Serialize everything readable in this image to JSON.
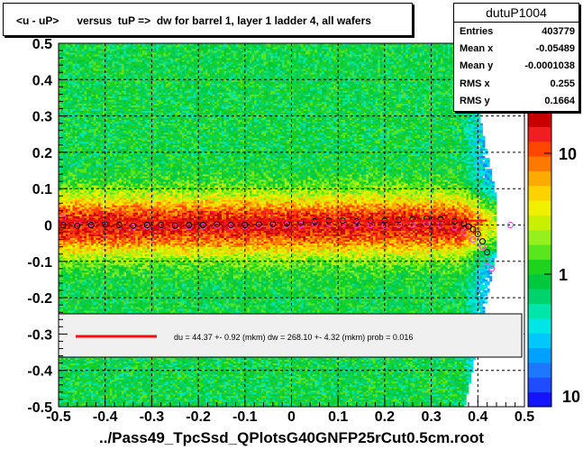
{
  "title": "<u - uP>      versus  tuP =>  dw for barrel 1, layer 1 ladder 4, all wafers",
  "x_axis_title": "../Pass49_TpcSsd_QPlotsG40GNFP25rCut0.5cm.root",
  "stats": {
    "name": "dutuP1004",
    "rows": [
      {
        "label": "Entries",
        "value": "403779"
      },
      {
        "label": "Mean x",
        "value": "-0.05489"
      },
      {
        "label": "Mean y",
        "value": "-0.0001038"
      },
      {
        "label": "RMS x",
        "value": "0.255"
      },
      {
        "label": "RMS y",
        "value": "0.1664"
      }
    ]
  },
  "fit_legend": "du =   44.37 +-  0.92 (mkm) dw =  268.10 +-  4.32 (mkm) prob = 0.016",
  "colors": {
    "fit_line": "#ee1111",
    "profile_black": "#000000",
    "profile_magenta": "#ff44cc",
    "legend_bg": "#f0f0f0"
  },
  "chart_data": {
    "type": "heatmap",
    "xlim": [
      -0.5,
      0.5
    ],
    "ylim": [
      -0.5,
      0.5
    ],
    "x_ticks": [
      "-0.5",
      "-0.4",
      "-0.3",
      "-0.2",
      "-0.1",
      "0",
      "0.1",
      "0.2",
      "0.3",
      "0.4",
      "0.5"
    ],
    "y_ticks": [
      "-0.5",
      "-0.4",
      "-0.3",
      "-0.2",
      "-0.1",
      "0",
      "0.1",
      "0.2",
      "0.3",
      "0.4",
      "0.5"
    ],
    "z_scale": "log",
    "z_ticks": [
      "1",
      "10"
    ],
    "profile_black": {
      "x": [
        -0.49,
        -0.46,
        -0.43,
        -0.4,
        -0.37,
        -0.34,
        -0.31,
        -0.28,
        -0.25,
        -0.22,
        -0.19,
        -0.16,
        -0.13,
        -0.1,
        -0.07,
        -0.04,
        -0.01,
        0.02,
        0.05,
        0.08,
        0.11,
        0.14,
        0.17,
        0.2,
        0.23,
        0.26,
        0.29,
        0.32,
        0.35,
        0.37,
        0.38,
        0.39,
        0.4,
        0.41,
        0.42
      ],
      "y": [
        0.0,
        -0.002,
        0.0,
        0.002,
        0.0,
        -0.002,
        0.0,
        0.0,
        -0.002,
        0.0,
        0.0,
        0.002,
        0.0,
        0.0,
        0.002,
        0.002,
        0.004,
        0.006,
        0.01,
        0.012,
        0.012,
        0.01,
        0.012,
        0.012,
        0.014,
        0.016,
        0.018,
        0.016,
        0.01,
        0.004,
        -0.004,
        -0.012,
        -0.025,
        -0.045,
        -0.075
      ]
    },
    "profile_magenta": {
      "x": [
        -0.49,
        -0.46,
        -0.43,
        -0.4,
        -0.37,
        -0.34,
        -0.31,
        -0.28,
        -0.25,
        -0.22,
        -0.19,
        -0.16,
        -0.13,
        -0.1,
        -0.07,
        -0.04,
        -0.01,
        0.02,
        0.05,
        0.08,
        0.11,
        0.14,
        0.17,
        0.2,
        0.23,
        0.26,
        0.29,
        0.32,
        0.35,
        0.37,
        0.39,
        0.41,
        0.42,
        0.43,
        0.47
      ],
      "y": [
        0.02,
        0.008,
        0.004,
        0.002,
        0.0,
        -0.004,
        -0.004,
        -0.002,
        -0.006,
        -0.006,
        -0.004,
        -0.002,
        -0.004,
        -0.004,
        -0.002,
        -0.002,
        0.0,
        0.0,
        0.002,
        0.004,
        0.002,
        0.0,
        0.0,
        -0.002,
        0.0,
        0.0,
        0.002,
        0.0,
        -0.006,
        -0.02,
        -0.04,
        -0.06,
        -0.1,
        -0.12,
        0.0
      ]
    },
    "fit_line": {
      "x": [
        -0.5,
        0.42
      ],
      "y": [
        0.012,
        0.012
      ]
    }
  }
}
